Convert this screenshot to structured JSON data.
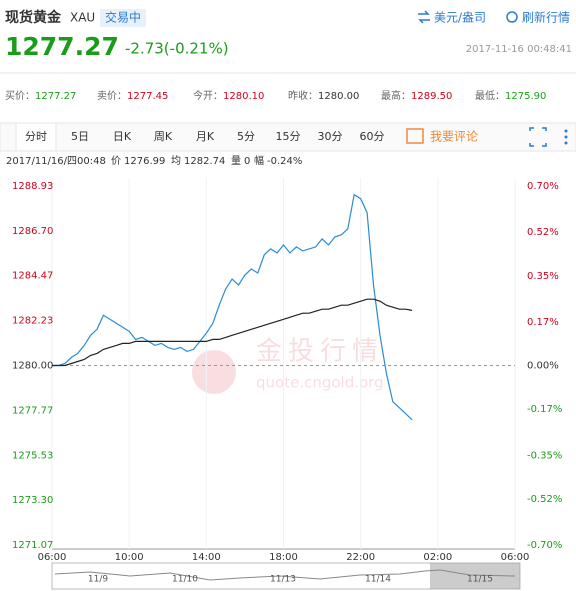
{
  "header": {
    "title": "现货黄金",
    "code": "XAU",
    "status": "交易中",
    "price": "1277.27",
    "change": "-2.73(-0.21%)",
    "unit_link": "美元/盎司",
    "refresh_link": "刷新行情",
    "time": "2017-11-16 00:48:41"
  },
  "stats": [
    {
      "label": "买价：",
      "value": "1277.27"
    },
    {
      "label": "卖价：",
      "value": "1277.45"
    },
    {
      "label": "今开：",
      "value": "1280.10"
    },
    {
      "label": "昨收：",
      "value": "1280.00"
    },
    {
      "label": "最高：",
      "value": "1289.50"
    },
    {
      "label": "最低：",
      "value": "1275.90"
    }
  ],
  "tabs": [
    "分时",
    "5日",
    "日K",
    "周K",
    "月K",
    "5分",
    "15分",
    "30分",
    "60分"
  ],
  "comment": "我要评论",
  "info": [
    "2017/11/16/四00:48",
    "价",
    "1276.99",
    "均",
    "1282.74",
    "量",
    "0",
    "幅",
    "-0.24%"
  ],
  "watermark": {
    "brand": "金投行情",
    "url": "quote.cngold.org"
  },
  "navigator": [
    "11/9",
    "11/10",
    "11/13",
    "11/14",
    "11/15"
  ],
  "chart_data": {
    "type": "line",
    "categories": [
      "06:00",
      null,
      null,
      null,
      null,
      null,
      null,
      null,
      null,
      null,
      null,
      null,
      "10:00",
      null,
      null,
      null,
      null,
      null,
      null,
      null,
      null,
      null,
      null,
      null,
      "14:00",
      null,
      null,
      null,
      null,
      null,
      null,
      null,
      null,
      null,
      null,
      null,
      "18:00",
      null,
      null,
      null,
      null,
      null,
      null,
      null,
      null,
      null,
      null,
      null,
      "22:00",
      null,
      null,
      null,
      null,
      null,
      null,
      null,
      null,
      null,
      null,
      null,
      "02:00",
      null,
      null,
      null,
      null,
      null,
      null,
      null,
      null,
      null,
      null,
      null,
      "06:00"
    ],
    "series": [
      {
        "name": "价",
        "color": "#2a8bd4",
        "values": [
          1280.0,
          1280.0,
          1280.1,
          1280.4,
          1280.6,
          1281.0,
          1281.5,
          1281.8,
          1282.5,
          1282.3,
          1282.1,
          1281.9,
          1281.7,
          1281.3,
          1281.4,
          1281.2,
          1281.0,
          1281.1,
          1280.9,
          1280.8,
          1280.9,
          1280.7,
          1280.8,
          1281.2,
          1281.6,
          1282.1,
          1283.0,
          1283.8,
          1284.3,
          1284.0,
          1284.5,
          1284.8,
          1284.6,
          1285.5,
          1285.8,
          1285.6,
          1286.0,
          1285.6,
          1285.9,
          1285.7,
          1285.8,
          1285.9,
          1286.3,
          1286.0,
          1286.4,
          1286.5,
          1286.8,
          1288.5,
          1288.3,
          1287.6,
          1284.0,
          1281.5,
          1279.6,
          1278.2,
          1277.9,
          1277.6,
          1277.3,
          null,
          null,
          null,
          null,
          null,
          null,
          null,
          null,
          null,
          null,
          null,
          null,
          null,
          null,
          null,
          null
        ]
      },
      {
        "name": "均",
        "color": "#222222",
        "values": [
          1280.0,
          1280.0,
          1280.0,
          1280.1,
          1280.2,
          1280.3,
          1280.5,
          1280.6,
          1280.8,
          1280.9,
          1281.0,
          1281.1,
          1281.1,
          1281.2,
          1281.2,
          1281.2,
          1281.2,
          1281.2,
          1281.2,
          1281.2,
          1281.2,
          1281.2,
          1281.2,
          1281.2,
          1281.2,
          1281.3,
          1281.3,
          1281.4,
          1281.5,
          1281.6,
          1281.7,
          1281.8,
          1281.9,
          1282.0,
          1282.1,
          1282.2,
          1282.3,
          1282.4,
          1282.5,
          1282.6,
          1282.6,
          1282.7,
          1282.8,
          1282.8,
          1282.9,
          1283.0,
          1283.0,
          1283.1,
          1283.2,
          1283.3,
          1283.3,
          1283.2,
          1283.0,
          1282.9,
          1282.8,
          1282.8,
          1282.74,
          null,
          null,
          null,
          null,
          null,
          null,
          null,
          null,
          null,
          null,
          null,
          null,
          null,
          null,
          null,
          null
        ]
      }
    ],
    "ylim": [
      1271.07,
      1288.93
    ],
    "yticks": [
      {
        "value": 1288.93,
        "label": "1288.93"
      },
      {
        "value": 1286.7,
        "label": "1286.70"
      },
      {
        "value": 1284.47,
        "label": "1284.47"
      },
      {
        "value": 1282.23,
        "label": "1282.23"
      },
      {
        "value": 1280.0,
        "label": "1280.00"
      },
      {
        "value": 1277.77,
        "label": "1277.77"
      },
      {
        "value": 1275.53,
        "label": "1275.53"
      },
      {
        "value": 1273.3,
        "label": "1273.30"
      },
      {
        "value": 1271.07,
        "label": "1271.07"
      }
    ],
    "y2lim": [
      -0.7,
      0.7
    ],
    "y2ticks": [
      {
        "value": 0.7,
        "label": "0.70%"
      },
      {
        "value": 0.52,
        "label": "0.52%"
      },
      {
        "value": 0.35,
        "label": "0.35%"
      },
      {
        "value": 0.17,
        "label": "0.17%"
      },
      {
        "value": 0.0,
        "label": "0.00%"
      },
      {
        "value": -0.17,
        "label": "-0.17%"
      },
      {
        "value": -0.35,
        "label": "-0.35%"
      },
      {
        "value": -0.52,
        "label": "-0.52%"
      },
      {
        "value": -0.7,
        "label": "-0.70%"
      }
    ],
    "grid": true
  }
}
